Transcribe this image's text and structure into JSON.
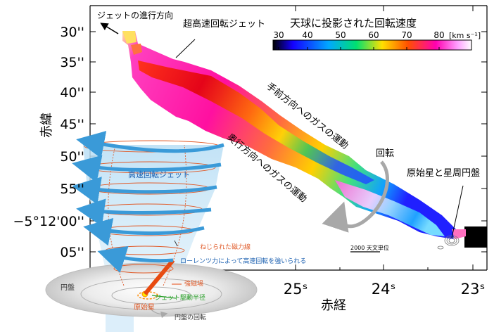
{
  "figure": {
    "top_left_arrow_label": "ジェットの進行方向",
    "jet_label_top": "超高速回転ジェット",
    "colorbar": {
      "title": "天球に投影された回転速度",
      "ticks": [
        "30",
        "40",
        "50",
        "60",
        "70",
        "80"
      ],
      "unit": "[km s⁻¹]",
      "colors": [
        "#000000",
        "#1400ff",
        "#00a8ff",
        "#00e070",
        "#ffe000",
        "#ff5000",
        "#ff00b0",
        "#ffa0ff",
        "#ffffff"
      ]
    },
    "y_axis": {
      "title": "赤緯",
      "ticks": [
        "30''",
        "35''",
        "40''",
        "45''",
        "50''",
        "55''",
        "−5°12'00''",
        "05''"
      ]
    },
    "x_axis": {
      "title": "赤経",
      "ticks": [
        "25ˢ",
        "24ˢ",
        "23ˢ"
      ]
    },
    "annotations": {
      "gas_front": "手前方向へのガスの運動",
      "gas_back": "奥行方向へのガスの運動",
      "rotation": "回転",
      "protostar_disk": "原始星と星周円盤",
      "scale_bar": "2000 天文単位"
    },
    "inset": {
      "jet_label": "高速回転ジェット",
      "twisted_field": "ねじられた磁力線",
      "lorentz": "ローレンツ力によって高速回転を強いられる",
      "disk": "円盤",
      "strong_field": "強磁場",
      "jet_driving_radius": "ジェット駆動半径",
      "protostar": "原始星",
      "disk_rotation": "円盤の回転"
    }
  }
}
